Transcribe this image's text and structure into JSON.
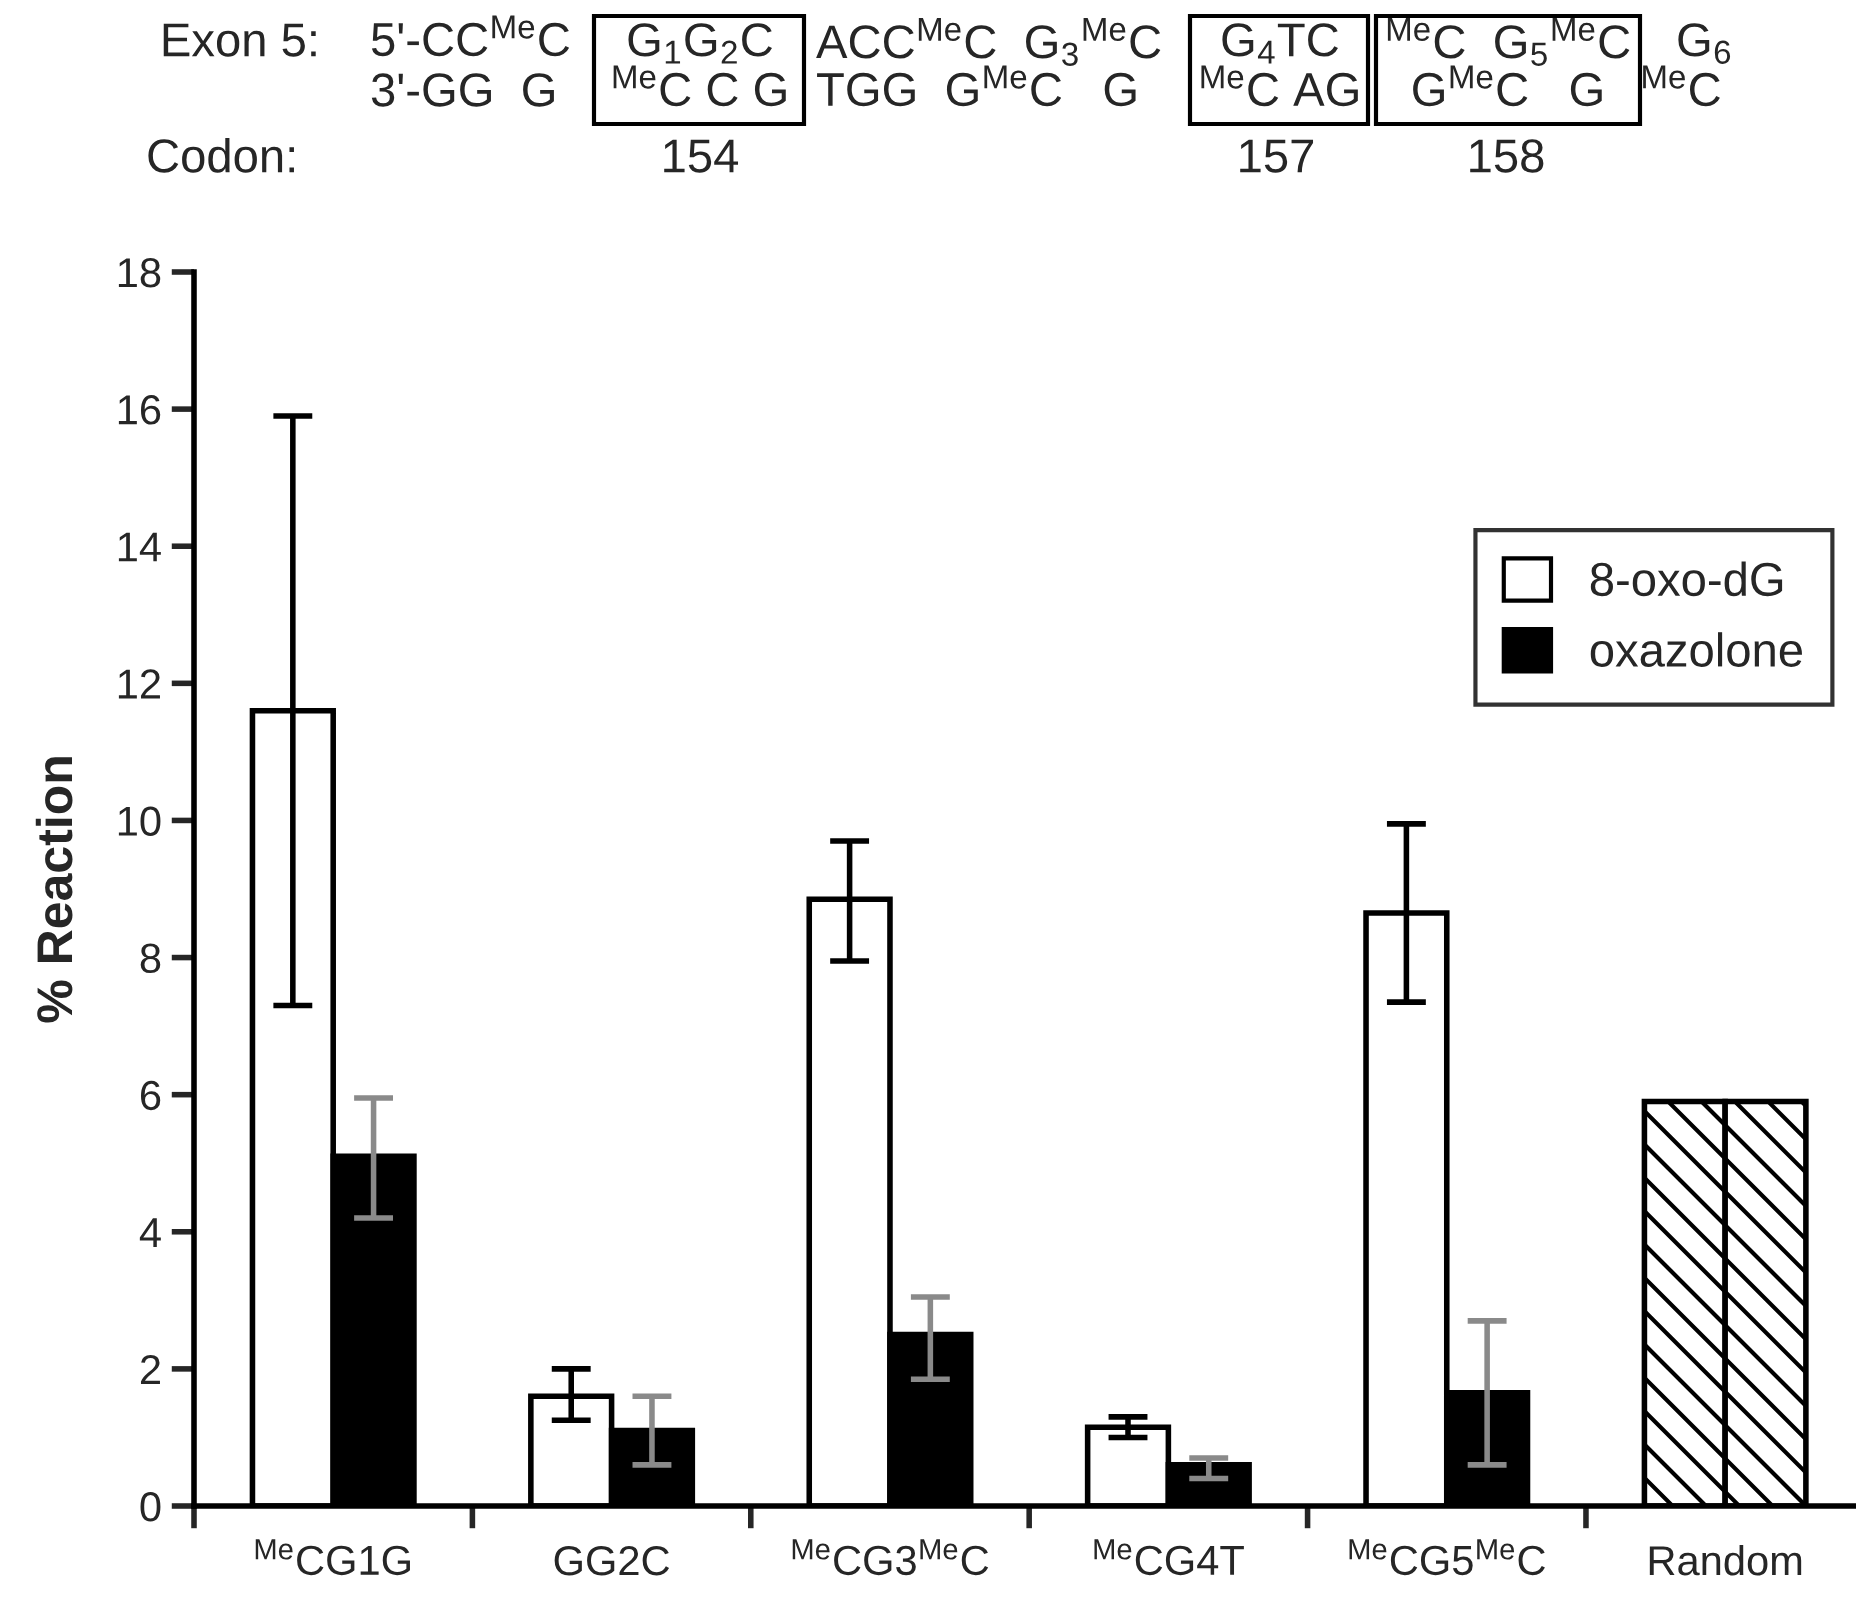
{
  "chart_data": {
    "type": "bar",
    "annotations": [
      "Exon 5:",
      "5'-CC$^{Me}$C",
      "G$_{1}$G$_{2}$C",
      "ACC$^{Me}$C  G$_{3}$$^{Me}$C",
      "G$_{4}$TC",
      "$^{Me}$C  G$_{5}$$^{Me}$C",
      "G$_{6}$",
      "3'-GG  G",
      "$^{Me}$C C G",
      "TGG  G$^{Me}$C   G",
      "$^{Me}$C AG",
      "G$^{Me}$C   G",
      "$^{Me}$C",
      "Codon:",
      "154",
      "157",
      "158"
    ],
    "ylabel": "% Reaction",
    "categories": [
      "$^{Me}$CG1G",
      "GG2C",
      "$^{Me}$CG3$^{Me}$C",
      "$^{Me}$CG4T",
      "$^{Me}$CG5$^{Me}$C",
      "Random"
    ],
    "series": [
      {
        "name": "8-oxo-dG",
        "color": "#ffffff",
        "values": [
          11.6,
          1.6,
          8.85,
          1.15,
          8.65,
          5.9
        ],
        "colors": [
          "#ffffff",
          "#ffffff",
          "#ffffff",
          "#ffffff",
          "#ffffff",
          "#000000"
        ],
        "errors": [
          [
            7.3,
            15.9
          ],
          [
            1.25,
            2.0
          ],
          [
            7.95,
            9.7
          ],
          [
            1.0,
            1.3
          ],
          [
            7.35,
            9.95
          ],
          null
        ]
      },
      {
        "name": "oxazolone",
        "color": "#000000",
        "values": [
          5.1,
          1.1,
          2.5,
          0.6,
          1.65,
          5.9
        ],
        "colors": [
          "#000000",
          "#000000",
          "#000000",
          "#000000",
          "#000000",
          "#000000"
        ],
        "errors": [
          [
            4.2,
            5.95
          ],
          [
            0.6,
            1.6
          ],
          [
            1.85,
            3.05
          ],
          [
            0.4,
            0.7
          ],
          [
            0.6,
            2.7
          ],
          null
        ]
      }
    ],
    "ylim": [
      0,
      18
    ],
    "yticks": [
      0,
      2,
      4,
      6,
      8,
      10,
      12,
      14,
      16,
      18
    ],
    "grid": false,
    "legend": "right"
  }
}
